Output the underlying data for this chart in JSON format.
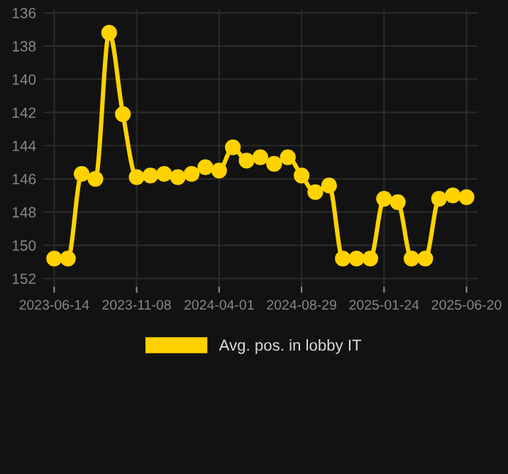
{
  "chart_data": {
    "type": "line",
    "categories": [
      "2023-06-14",
      null,
      null,
      null,
      null,
      null,
      "2023-11-08",
      null,
      null,
      null,
      null,
      null,
      "2024-04-01",
      null,
      null,
      null,
      null,
      null,
      "2024-08-29",
      null,
      null,
      null,
      null,
      null,
      "2025-01-24",
      null,
      null,
      null,
      null,
      null,
      "2025-06-20"
    ],
    "series": [
      {
        "name": "Avg. pos. in lobby IT",
        "color": "#ffd200",
        "values": [
          150.8,
          150.8,
          145.7,
          146.0,
          137.2,
          142.1,
          145.9,
          145.8,
          145.7,
          145.9,
          145.7,
          145.3,
          145.5,
          144.1,
          144.9,
          144.7,
          145.1,
          144.7,
          145.8,
          146.8,
          146.4,
          150.8,
          150.8,
          150.8,
          147.2,
          147.4,
          150.8,
          150.8,
          147.2,
          147.0,
          147.1
        ]
      }
    ],
    "ylim": [
      152.5,
      135.8
    ],
    "yticks": [
      136,
      138,
      140,
      142,
      144,
      146,
      148,
      150,
      152
    ],
    "grid": true,
    "legend": "bottom",
    "marker": "circle",
    "line_style": "solid"
  }
}
